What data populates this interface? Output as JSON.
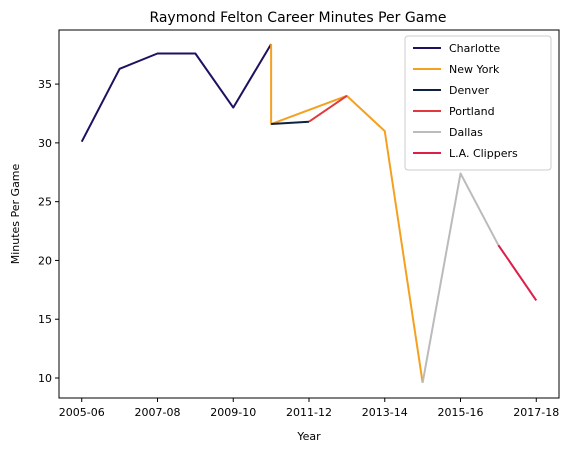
{
  "chart_data": {
    "type": "line",
    "title": "Raymond Felton Career Minutes Per Game",
    "xlabel": "Year",
    "ylabel": "Minutes Per Game",
    "xlim": [
      -0.6,
      12.6
    ],
    "ylim": [
      8.3,
      39.6
    ],
    "x_ticks": [
      {
        "x": 0,
        "label": "2005-06"
      },
      {
        "x": 2,
        "label": "2007-08"
      },
      {
        "x": 4,
        "label": "2009-10"
      },
      {
        "x": 6,
        "label": "2011-12"
      },
      {
        "x": 8,
        "label": "2013-14"
      },
      {
        "x": 10,
        "label": "2015-16"
      },
      {
        "x": 12,
        "label": "2017-18"
      }
    ],
    "y_ticks": [
      10,
      15,
      20,
      25,
      30,
      35
    ],
    "grid": false,
    "legend_position": "top-right",
    "series": [
      {
        "name": "Charlotte",
        "color": "#1d1160",
        "points": [
          [
            0,
            30.1
          ],
          [
            1,
            36.3
          ],
          [
            2,
            37.6
          ],
          [
            3,
            37.6
          ],
          [
            4,
            33.0
          ],
          [
            5,
            38.4
          ]
        ]
      },
      {
        "name": "New York",
        "color": "#f5a01f",
        "points": [
          [
            5,
            38.4
          ],
          [
            5,
            31.6
          ],
          [
            7,
            34.0
          ],
          [
            8,
            31.0
          ],
          [
            9,
            9.6
          ]
        ]
      },
      {
        "name": "Denver",
        "color": "#0e2240",
        "points": [
          [
            5,
            31.6
          ],
          [
            6,
            31.8
          ]
        ]
      },
      {
        "name": "Portland",
        "color": "#e03a3e",
        "points": [
          [
            6,
            31.8
          ],
          [
            7,
            34.0
          ]
        ]
      },
      {
        "name": "Dallas",
        "color": "#bbbbbb",
        "points": [
          [
            9,
            9.6
          ],
          [
            10,
            27.4
          ],
          [
            11,
            21.3
          ]
        ]
      },
      {
        "name": "L.A. Clippers",
        "color": "#dc1f48",
        "points": [
          [
            11,
            21.3
          ],
          [
            12,
            16.6
          ]
        ]
      }
    ]
  }
}
